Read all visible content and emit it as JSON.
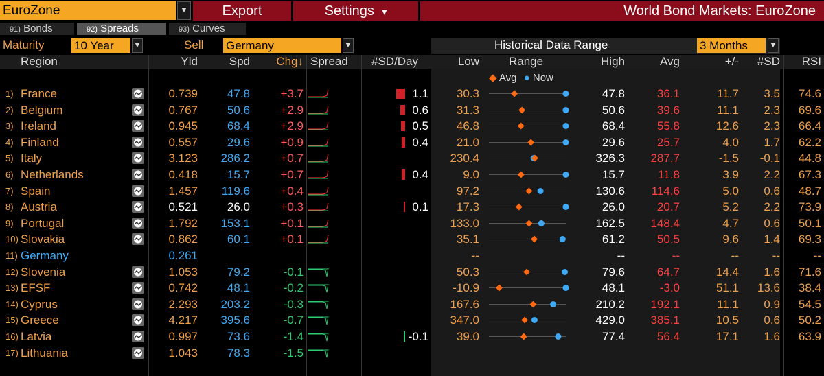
{
  "toolbar": {
    "region": "EuroZone",
    "export_label": "Export",
    "settings_label": "Settings",
    "settings_arrow": "▾",
    "title": "World Bond Markets: EuroZone"
  },
  "tabs": [
    {
      "num": "91)",
      "label": "Bonds"
    },
    {
      "num": "92)",
      "label": "Spreads"
    },
    {
      "num": "93)",
      "label": "Curves"
    }
  ],
  "controls": {
    "maturity_label": "Maturity",
    "maturity_value": "10 Year",
    "sell_label": "Sell",
    "sell_value": "Germany",
    "hist_label": "Historical Data Range",
    "hist_value": "3 Months"
  },
  "columns": {
    "region": "Region",
    "yld": "Yld",
    "spd": "Spd",
    "chg": "Chg↓",
    "spread": "Spread",
    "sdday": "#SD/Day",
    "low": "Low",
    "range": "Range",
    "high": "High",
    "avg": "Avg",
    "plusminus": "+/-",
    "sd": "#SD",
    "rsi": "RSI"
  },
  "legend": {
    "avg": "Avg",
    "now": "Now"
  },
  "colors": {
    "accent": "#f5a623",
    "title_bg": "#8b0c1a",
    "avg_marker": "#ff6a13",
    "now_marker": "#3fa9f5"
  },
  "rows": [
    {
      "ix": "1)",
      "name": "France",
      "yld": "0.739",
      "spd": "47.8",
      "chg": "+3.7",
      "sd_day": "1.1",
      "sd_bar": 1.1,
      "low": "30.3",
      "high": "47.8",
      "avg": "36.1",
      "pm": "11.7",
      "sd": "3.5",
      "rsi": "74.6",
      "lowv": 30.3,
      "highv": 47.8,
      "avgv": 36.1,
      "nowv": 47.8,
      "hl": false
    },
    {
      "ix": "2)",
      "name": "Belgium",
      "yld": "0.767",
      "spd": "50.6",
      "chg": "+2.9",
      "sd_day": "0.6",
      "sd_bar": 0.6,
      "low": "31.3",
      "high": "50.6",
      "avg": "39.6",
      "pm": "11.1",
      "sd": "2.3",
      "rsi": "69.6",
      "lowv": 31.3,
      "highv": 50.6,
      "avgv": 39.6,
      "nowv": 50.6,
      "hl": false
    },
    {
      "ix": "3)",
      "name": "Ireland",
      "yld": "0.945",
      "spd": "68.4",
      "chg": "+2.9",
      "sd_day": "0.5",
      "sd_bar": 0.5,
      "low": "46.8",
      "high": "68.4",
      "avg": "55.8",
      "pm": "12.6",
      "sd": "2.3",
      "rsi": "66.4",
      "lowv": 46.8,
      "highv": 68.4,
      "avgv": 55.8,
      "nowv": 68.4,
      "hl": false
    },
    {
      "ix": "4)",
      "name": "Finland",
      "yld": "0.557",
      "spd": "29.6",
      "chg": "+0.9",
      "sd_day": "0.4",
      "sd_bar": 0.4,
      "low": "21.0",
      "high": "29.6",
      "avg": "25.7",
      "pm": "4.0",
      "sd": "1.7",
      "rsi": "62.2",
      "lowv": 21.0,
      "highv": 29.6,
      "avgv": 25.7,
      "nowv": 29.6,
      "hl": false
    },
    {
      "ix": "5)",
      "name": "Italy",
      "yld": "3.123",
      "spd": "286.2",
      "chg": "+0.7",
      "sd_day": "",
      "sd_bar": 0,
      "low": "230.4",
      "high": "326.3",
      "avg": "287.7",
      "pm": "-1.5",
      "sd": "-0.1",
      "rsi": "44.8",
      "lowv": 230.4,
      "highv": 326.3,
      "avgv": 287.7,
      "nowv": 286.2,
      "hl": false
    },
    {
      "ix": "6)",
      "name": "Netherlands",
      "yld": "0.418",
      "spd": "15.7",
      "chg": "+0.7",
      "sd_day": "0.4",
      "sd_bar": 0.4,
      "low": "9.0",
      "high": "15.7",
      "avg": "11.8",
      "pm": "3.9",
      "sd": "2.2",
      "rsi": "67.3",
      "lowv": 9.0,
      "highv": 15.7,
      "avgv": 11.8,
      "nowv": 15.7,
      "hl": false
    },
    {
      "ix": "7)",
      "name": "Spain",
      "yld": "1.457",
      "spd": "119.6",
      "chg": "+0.4",
      "sd_day": "",
      "sd_bar": 0,
      "low": "97.2",
      "high": "130.6",
      "avg": "114.6",
      "pm": "5.0",
      "sd": "0.6",
      "rsi": "48.7",
      "lowv": 97.2,
      "highv": 130.6,
      "avgv": 114.6,
      "nowv": 119.6,
      "hl": false
    },
    {
      "ix": "8)",
      "name": "Austria",
      "yld": "0.521",
      "spd": "26.0",
      "chg": "+0.3",
      "sd_day": "0.1",
      "sd_bar": 0.1,
      "low": "17.3",
      "high": "26.0",
      "avg": "20.7",
      "pm": "5.2",
      "sd": "2.2",
      "rsi": "73.9",
      "lowv": 17.3,
      "highv": 26.0,
      "avgv": 20.7,
      "nowv": 26.0,
      "hl": true
    },
    {
      "ix": "9)",
      "name": "Portugal",
      "yld": "1.792",
      "spd": "153.1",
      "chg": "+0.1",
      "sd_day": "",
      "sd_bar": 0,
      "low": "133.0",
      "high": "162.5",
      "avg": "148.4",
      "pm": "4.7",
      "sd": "0.6",
      "rsi": "50.1",
      "lowv": 133.0,
      "highv": 162.5,
      "avgv": 148.4,
      "nowv": 153.1,
      "hl": false
    },
    {
      "ix": "10)",
      "name": "Slovakia",
      "yld": "0.862",
      "spd": "60.1",
      "chg": "+0.1",
      "sd_day": "",
      "sd_bar": 0,
      "low": "35.1",
      "high": "61.2",
      "avg": "50.5",
      "pm": "9.6",
      "sd": "1.4",
      "rsi": "69.3",
      "lowv": 35.1,
      "highv": 61.2,
      "avgv": 50.5,
      "nowv": 60.1,
      "hl": false
    },
    {
      "ix": "11)",
      "name": "Germany",
      "yld": "0.261",
      "spd": "",
      "chg": "",
      "sd_day": "",
      "sd_bar": 0,
      "low": "--",
      "high": "--",
      "avg": "--",
      "pm": "--",
      "sd": "--",
      "rsi": "--",
      "lowv": null,
      "highv": null,
      "avgv": null,
      "nowv": null,
      "hl": false,
      "base": true
    },
    {
      "ix": "12)",
      "name": "Slovenia",
      "yld": "1.053",
      "spd": "79.2",
      "chg": "-0.1",
      "sd_day": "",
      "sd_bar": 0,
      "low": "50.3",
      "high": "79.6",
      "avg": "64.7",
      "pm": "14.4",
      "sd": "1.6",
      "rsi": "71.6",
      "lowv": 50.3,
      "highv": 79.6,
      "avgv": 64.7,
      "nowv": 79.2,
      "hl": false
    },
    {
      "ix": "13)",
      "name": "EFSF",
      "yld": "0.742",
      "spd": "48.1",
      "chg": "-0.2",
      "sd_day": "",
      "sd_bar": 0,
      "low": "-10.9",
      "high": "48.1",
      "avg": "-3.0",
      "pm": "51.1",
      "sd": "13.6",
      "rsi": "38.4",
      "lowv": -10.9,
      "highv": 48.1,
      "avgv": -3.0,
      "nowv": 48.1,
      "hl": false
    },
    {
      "ix": "14)",
      "name": "Cyprus",
      "yld": "2.293",
      "spd": "203.2",
      "chg": "-0.3",
      "sd_day": "",
      "sd_bar": 0,
      "low": "167.6",
      "high": "210.2",
      "avg": "192.1",
      "pm": "11.1",
      "sd": "0.9",
      "rsi": "54.5",
      "lowv": 167.6,
      "highv": 210.2,
      "avgv": 192.1,
      "nowv": 203.2,
      "hl": false
    },
    {
      "ix": "15)",
      "name": "Greece",
      "yld": "4.217",
      "spd": "395.6",
      "chg": "-0.7",
      "sd_day": "",
      "sd_bar": 0,
      "low": "347.0",
      "high": "429.0",
      "avg": "385.1",
      "pm": "10.5",
      "sd": "0.6",
      "rsi": "50.2",
      "lowv": 347.0,
      "highv": 429.0,
      "avgv": 385.1,
      "nowv": 395.6,
      "hl": false
    },
    {
      "ix": "16)",
      "name": "Latvia",
      "yld": "0.997",
      "spd": "73.6",
      "chg": "-1.4",
      "sd_day": "-0.1",
      "sd_bar": -0.1,
      "low": "39.0",
      "high": "77.4",
      "avg": "56.4",
      "pm": "17.1",
      "sd": "1.6",
      "rsi": "63.9",
      "lowv": 39.0,
      "highv": 77.4,
      "avgv": 56.4,
      "nowv": 73.6,
      "hl": false
    },
    {
      "ix": "17)",
      "name": "Lithuania",
      "yld": "1.043",
      "spd": "78.3",
      "chg": "-1.5",
      "sd_day": "",
      "sd_bar": 0,
      "low": "",
      "high": "",
      "avg": "",
      "pm": "",
      "sd": "",
      "rsi": "",
      "lowv": null,
      "highv": null,
      "avgv": null,
      "nowv": null,
      "hl": false
    }
  ]
}
